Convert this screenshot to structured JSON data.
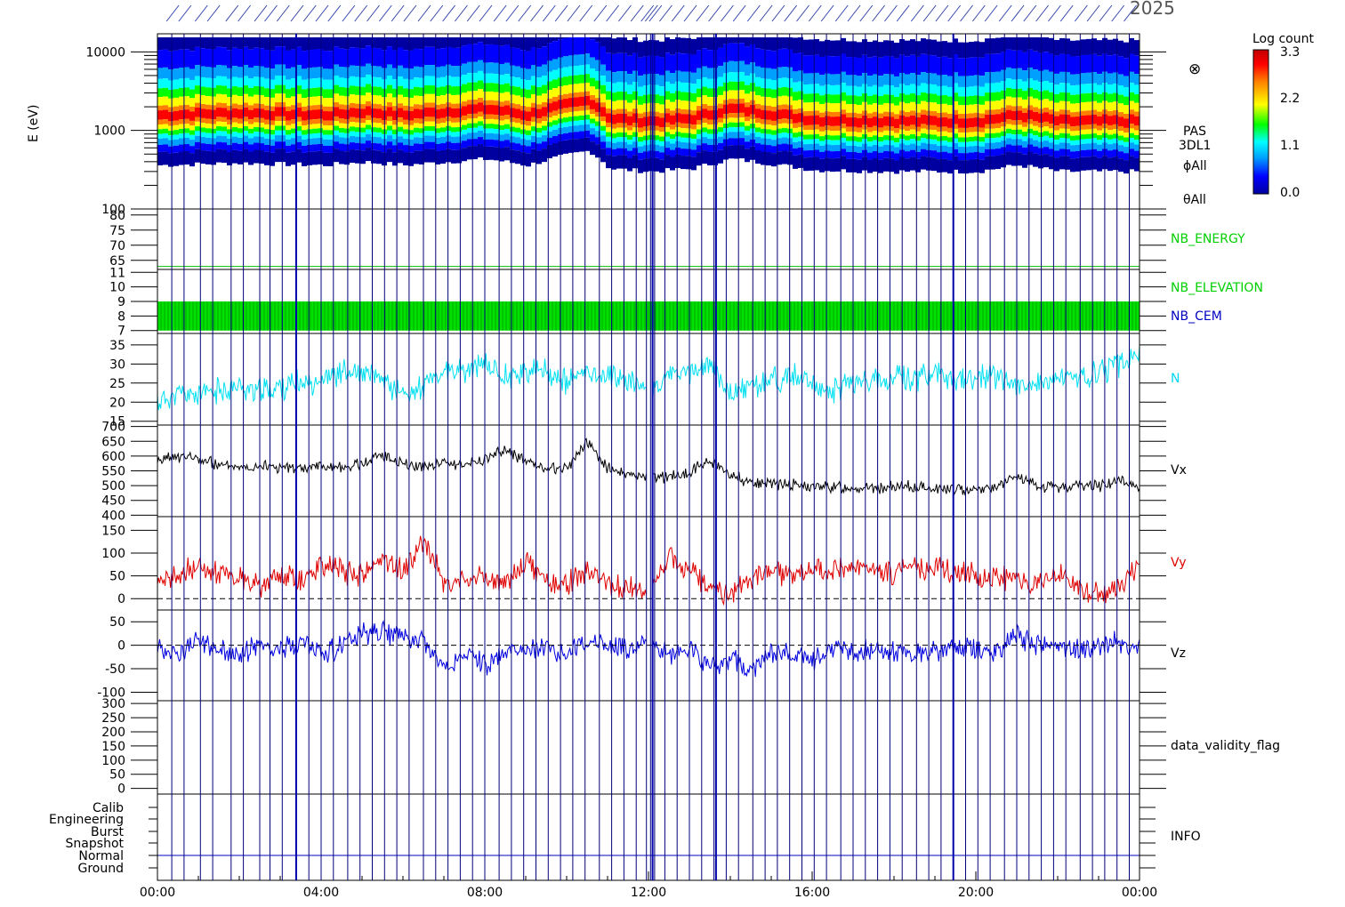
{
  "header": {
    "date_label": "2025"
  },
  "colorbar": {
    "title": "Log count",
    "ticks": [
      "3.3",
      "2.2",
      "1.1",
      "0.0"
    ]
  },
  "chart_data": [
    {
      "type": "heatmap",
      "panel": "spectrogram",
      "ylabel": "E (eV)",
      "yscale": "log",
      "ylim": [
        100,
        17000
      ],
      "yticks": [
        "100",
        "1000",
        "10000"
      ],
      "right_labels": [
        "PAS",
        "3DL1",
        "ϕAll",
        "θAll"
      ],
      "marker": "⊗",
      "colorscale": [
        "#0000a0",
        "#0000ff",
        "#00a0ff",
        "#00ffff",
        "#00ff00",
        "#ffff00",
        "#ff8000",
        "#ff0000",
        "#c00000"
      ],
      "peak_energy_ev": {
        "x": [
          0,
          2,
          4,
          5,
          6,
          8,
          9,
          10.5,
          11,
          12,
          13,
          14,
          16,
          18,
          20,
          21,
          22,
          24
        ],
        "y": [
          1500,
          1600,
          1500,
          1650,
          1500,
          1800,
          1500,
          2300,
          1350,
          1250,
          1350,
          1800,
          1300,
          1250,
          1250,
          1500,
          1250,
          1250
        ]
      }
    },
    {
      "type": "line",
      "panel": "nb_energy",
      "ylim": [
        62,
        82
      ],
      "yticks": [
        "65",
        "70",
        "75",
        "80"
      ],
      "right_label": "NB_ENERGY",
      "value": 63,
      "color": "#00c000"
    },
    {
      "type": "area",
      "panel": "nb_elevation_cem",
      "ylim": [
        6.8,
        11.2
      ],
      "yticks": [
        "7",
        "8",
        "9",
        "10",
        "11"
      ],
      "right_labels": [
        "NB_ELEVATION",
        "NB_CEM"
      ],
      "band": [
        7,
        9
      ],
      "colors": [
        "#00e000",
        "#0000c0"
      ]
    },
    {
      "type": "line",
      "panel": "N",
      "ylim": [
        14,
        38
      ],
      "yticks": [
        "15",
        "20",
        "25",
        "30",
        "35"
      ],
      "right_label": "N",
      "color": "#00e0f0",
      "x": [
        0,
        0.5,
        1,
        1.5,
        2,
        2.5,
        3,
        3.5,
        4,
        4.5,
        5,
        5.5,
        6,
        6.5,
        7,
        7.5,
        8,
        8.5,
        9,
        9.5,
        10,
        10.5,
        11,
        11.5,
        12,
        12.5,
        13,
        13.5,
        14,
        14.5,
        15,
        15.5,
        16,
        16.5,
        17,
        17.5,
        18,
        18.5,
        19,
        19.5,
        20,
        20.5,
        21,
        21.5,
        22,
        22.5,
        23,
        23.5,
        24
      ],
      "y": [
        20,
        22,
        22,
        23,
        24,
        23,
        24,
        25,
        26,
        28,
        27,
        26,
        22,
        24,
        28,
        28,
        30,
        27,
        28,
        28,
        25,
        28,
        27,
        26,
        23,
        27,
        28,
        30,
        22,
        24,
        26,
        27,
        24,
        23,
        26,
        25,
        27,
        26,
        28,
        25,
        26,
        27,
        25,
        24,
        26,
        26,
        28,
        30,
        33
      ]
    },
    {
      "type": "line",
      "panel": "Vx",
      "ylim": [
        395,
        705
      ],
      "yticks": [
        "400",
        "450",
        "500",
        "550",
        "600",
        "650",
        "700"
      ],
      "right_label": "Vx",
      "color": "#000000",
      "x": [
        0,
        0.5,
        1,
        1.5,
        2,
        2.5,
        3,
        3.5,
        4,
        4.5,
        5,
        5.5,
        6,
        6.5,
        7,
        7.5,
        8,
        8.5,
        9,
        9.5,
        10,
        10.5,
        11,
        11.5,
        12,
        12.5,
        13,
        13.5,
        14,
        14.5,
        15,
        15.5,
        16,
        16.5,
        17,
        17.5,
        18,
        18.5,
        19,
        19.5,
        20,
        20.5,
        21,
        21.5,
        22,
        22.5,
        23,
        23.5,
        24
      ],
      "y": [
        580,
        600,
        590,
        570,
        565,
        570,
        560,
        555,
        570,
        560,
        575,
        605,
        575,
        565,
        580,
        570,
        590,
        620,
        580,
        560,
        555,
        650,
        560,
        535,
        525,
        530,
        545,
        585,
        540,
        510,
        510,
        505,
        495,
        495,
        495,
        490,
        495,
        495,
        490,
        485,
        490,
        495,
        530,
        495,
        495,
        500,
        500,
        515,
        500
      ]
    },
    {
      "type": "line",
      "panel": "Vy",
      "ylim": [
        -25,
        180
      ],
      "yticks": [
        "0",
        "50",
        "100",
        "150"
      ],
      "right_label": "Vy",
      "color": "#e00000",
      "reference_line": 0,
      "x": [
        0,
        0.5,
        1,
        1.5,
        2,
        2.5,
        3,
        3.5,
        4,
        4.5,
        5,
        5.5,
        6,
        6.5,
        7,
        7.5,
        8,
        8.5,
        9,
        9.5,
        10,
        10.5,
        11,
        11.5,
        12,
        12.5,
        13,
        13.5,
        14,
        14.5,
        15,
        15.5,
        16,
        16.5,
        17,
        17.5,
        18,
        18.5,
        19,
        19.5,
        20,
        20.5,
        21,
        21.5,
        22,
        22.5,
        23,
        23.5,
        24
      ],
      "y": [
        20,
        50,
        70,
        60,
        45,
        30,
        50,
        40,
        80,
        60,
        50,
        90,
        60,
        130,
        40,
        35,
        50,
        35,
        80,
        40,
        30,
        60,
        30,
        20,
        10,
        90,
        70,
        20,
        10,
        40,
        60,
        50,
        60,
        55,
        70,
        60,
        55,
        60,
        70,
        60,
        50,
        45,
        40,
        30,
        50,
        25,
        10,
        20,
        80
      ]
    },
    {
      "type": "line",
      "panel": "Vz",
      "ylim": [
        -118,
        75
      ],
      "yticks": [
        "-100",
        "-50",
        "0",
        "50"
      ],
      "right_label": "Vz",
      "color": "#0000e0",
      "reference_line": 0,
      "x": [
        0,
        0.5,
        1,
        1.5,
        2,
        2.5,
        3,
        3.5,
        4,
        4.5,
        5,
        5.5,
        6,
        6.5,
        7,
        7.5,
        8,
        8.5,
        9,
        9.5,
        10,
        10.5,
        11,
        11.5,
        12,
        12.5,
        13,
        13.5,
        14,
        14.5,
        15,
        15.5,
        16,
        16.5,
        17,
        17.5,
        18,
        18.5,
        19,
        19.5,
        20,
        20.5,
        21,
        21.5,
        22,
        22.5,
        23,
        23.5,
        24
      ],
      "y": [
        0,
        -20,
        10,
        -10,
        -20,
        0,
        -10,
        10,
        -20,
        0,
        20,
        30,
        20,
        10,
        -50,
        -20,
        -40,
        -20,
        -10,
        0,
        -20,
        10,
        0,
        -10,
        5,
        -20,
        -10,
        -40,
        -30,
        -50,
        -20,
        -20,
        -30,
        -10,
        -20,
        -10,
        -10,
        -20,
        -10,
        -5,
        -10,
        -10,
        20,
        0,
        0,
        -10,
        0,
        10,
        -10
      ]
    },
    {
      "type": "line",
      "panel": "data_validity_flag",
      "ylim": [
        -20,
        310
      ],
      "yticks": [
        "0",
        "50",
        "100",
        "150",
        "200",
        "250",
        "300"
      ],
      "right_label": "data_validity_flag"
    },
    {
      "type": "table",
      "panel": "INFO",
      "categories": [
        "Calib",
        "Engineering",
        "Burst",
        "Snapshot",
        "Normal",
        "Ground"
      ],
      "right_label": "INFO",
      "active_category": "Normal"
    }
  ],
  "time_axis": {
    "range_hours": [
      0,
      24
    ],
    "tick_labels": [
      "00:00",
      "04:00",
      "08:00",
      "12:00",
      "16:00",
      "20:00",
      "00:00"
    ],
    "event_lines_hours": [
      0.35,
      0.65,
      1.05,
      1.35,
      1.8,
      2.1,
      2.5,
      2.75,
      3.05,
      3.39,
      3.7,
      4.0,
      4.3,
      4.65,
      4.95,
      5.25,
      5.55,
      5.85,
      6.15,
      6.5,
      6.8,
      7.1,
      7.4,
      7.7,
      8.0,
      8.35,
      8.65,
      8.95,
      9.25,
      9.55,
      9.85,
      10.15,
      10.45,
      10.8,
      11.1,
      11.4,
      11.7,
      11.95,
      12.05,
      12.15,
      12.4,
      12.7,
      13.0,
      13.3,
      13.6,
      13.9,
      14.2,
      14.55,
      14.85,
      15.15,
      15.45,
      15.75,
      16.05,
      16.35,
      16.7,
      17.0,
      17.3,
      17.6,
      17.9,
      18.2,
      18.55,
      18.85,
      19.15,
      19.45,
      19.75,
      20.05,
      20.35,
      20.7,
      21.0,
      21.3,
      21.6,
      21.9,
      22.2,
      22.55,
      22.85,
      23.15,
      23.45,
      23.75
    ],
    "thick_lines_hours": [
      3.39,
      12.1,
      13.65,
      19.45
    ]
  }
}
